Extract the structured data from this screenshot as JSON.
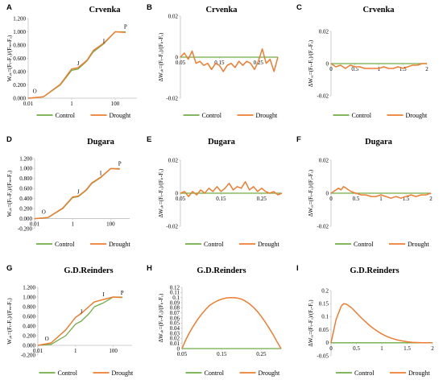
{
  "colors": {
    "control": "#70AD47",
    "drought": "#ED7D31",
    "axis": "#BFBFBF"
  },
  "chart_data": [
    {
      "id": "A",
      "letter": "A",
      "title": "Crvenka",
      "type": "line",
      "kind": "ojip",
      "ylabel": "Wₒₖ=(Fₜ-Fₒ)/(Fₘ-Fₒ)",
      "xscale": "log",
      "xlim": [
        0.01,
        1000
      ],
      "ylim": [
        0,
        1.2
      ],
      "xtick_labels": [
        "0.01",
        "1",
        "100"
      ],
      "ytick_labels": [
        "0.000",
        "0.200",
        "0.400",
        "0.600",
        "0.800",
        "1.000",
        "1.200"
      ],
      "point_labels": [
        {
          "text": "O",
          "x": 0.02,
          "y": 0.08
        },
        {
          "text": "J",
          "x": 2,
          "y": 0.5
        },
        {
          "text": "I",
          "x": 30,
          "y": 0.83
        },
        {
          "text": "P",
          "x": 300,
          "y": 1.05
        }
      ],
      "x": [
        0.01,
        0.05,
        0.3,
        1,
        2,
        5,
        10,
        30,
        100,
        300
      ],
      "series": [
        {
          "name": "Control",
          "values": [
            0,
            0.02,
            0.2,
            0.42,
            0.44,
            0.56,
            0.7,
            0.82,
            1.0,
            1.0
          ]
        },
        {
          "name": "Drought",
          "values": [
            0,
            0.02,
            0.21,
            0.44,
            0.46,
            0.57,
            0.72,
            0.83,
            1.0,
            0.99
          ]
        }
      ],
      "legend": [
        "Control",
        "Drought"
      ]
    },
    {
      "id": "B",
      "letter": "B",
      "title": "Crvenka",
      "type": "line",
      "kind": "diff",
      "ylabel": "ΔWₒₖ=(Fₜ-Fₒ)/(Fₖ-Fₒ)",
      "xlim": [
        0.05,
        0.3
      ],
      "ylim": [
        -0.02,
        0.02
      ],
      "xticks": [
        0.05,
        0.15,
        0.25
      ],
      "xtick_labels": [
        "0.05",
        "0.15",
        "0.25"
      ],
      "yticks": [
        -0.02,
        0,
        0.02
      ],
      "ytick_labels": [
        "-0.02",
        "0",
        "0.02"
      ],
      "x": [
        0.05,
        0.06,
        0.07,
        0.08,
        0.09,
        0.1,
        0.11,
        0.12,
        0.13,
        0.14,
        0.15,
        0.16,
        0.17,
        0.18,
        0.19,
        0.2,
        0.21,
        0.22,
        0.23,
        0.24,
        0.25,
        0.26,
        0.27,
        0.28,
        0.29,
        0.3
      ],
      "series": [
        {
          "name": "Control",
          "values": [
            0,
            0,
            0,
            0,
            0,
            0,
            0,
            0,
            0,
            0,
            0,
            0,
            0,
            0,
            0,
            0,
            0,
            0,
            0,
            0,
            0,
            0,
            0,
            0,
            0,
            0
          ]
        },
        {
          "name": "Drought",
          "values": [
            0,
            0.002,
            -0.001,
            0.003,
            -0.003,
            -0.002,
            -0.004,
            -0.003,
            -0.006,
            -0.003,
            -0.004,
            -0.007,
            -0.004,
            -0.003,
            -0.005,
            -0.002,
            -0.004,
            -0.002,
            -0.003,
            -0.006,
            -0.002,
            0.004,
            -0.003,
            -0.001,
            -0.007,
            0
          ]
        }
      ],
      "legend": [
        "Control",
        "Drought"
      ]
    },
    {
      "id": "C",
      "letter": "C",
      "title": "Crvenka",
      "type": "line",
      "kind": "diff",
      "ylabel": "ΔWₒₑ=(Fₜ-Fₒ)/(Fₑ-Fₒ)",
      "xlim": [
        0,
        2
      ],
      "ylim": [
        -0.02,
        0.02
      ],
      "xticks": [
        0,
        0.5,
        1,
        1.5,
        2
      ],
      "xtick_labels": [
        "0",
        "0.5",
        "1",
        "1.5",
        "2"
      ],
      "yticks": [
        -0.02,
        0,
        0.02
      ],
      "ytick_labels": [
        "-0.02",
        "0",
        "0.02"
      ],
      "x": [
        0,
        0.1,
        0.2,
        0.3,
        0.4,
        0.5,
        0.6,
        0.7,
        0.8,
        0.9,
        1.0,
        1.1,
        1.2,
        1.3,
        1.4,
        1.5,
        1.6,
        1.7,
        1.8,
        1.9,
        2.0
      ],
      "series": [
        {
          "name": "Control",
          "values": [
            0,
            0,
            0,
            0,
            0,
            0,
            0,
            0,
            0,
            0,
            0,
            0,
            0,
            0,
            0,
            0,
            0,
            0,
            0,
            0,
            0
          ]
        },
        {
          "name": "Drought",
          "values": [
            0,
            -0.002,
            -0.001,
            -0.003,
            -0.001,
            -0.002,
            -0.002,
            -0.003,
            -0.003,
            -0.003,
            -0.003,
            -0.002,
            -0.003,
            -0.003,
            -0.002,
            -0.003,
            -0.002,
            -0.001,
            -0.001,
            0,
            0
          ]
        }
      ],
      "legend": [
        "Control",
        "Drought"
      ]
    },
    {
      "id": "D",
      "letter": "D",
      "title": "Dugara",
      "type": "line",
      "kind": "ojip",
      "ylabel": "Wₒₖ=(Fₜ-Fₒ)/(Fₘ-Fₒ)",
      "xscale": "log",
      "xlim": [
        0.01,
        1000
      ],
      "ylim": [
        -0.2,
        1.2
      ],
      "xtick_labels": [
        "0.01",
        "1",
        "100"
      ],
      "ytick_labels": [
        "-0.200",
        "0.000",
        "0.200",
        "0.400",
        "0.600",
        "0.800",
        "1.000",
        "1.200"
      ],
      "point_labels": [
        {
          "text": "O",
          "x": 0.03,
          "y": 0.1
        },
        {
          "text": "J",
          "x": 2,
          "y": 0.5
        },
        {
          "text": "I",
          "x": 30,
          "y": 0.87
        },
        {
          "text": "P",
          "x": 300,
          "y": 1.06
        }
      ],
      "x": [
        0.01,
        0.05,
        0.3,
        1,
        2,
        5,
        10,
        30,
        100,
        300
      ],
      "series": [
        {
          "name": "Control",
          "values": [
            0,
            0.02,
            0.2,
            0.42,
            0.44,
            0.56,
            0.7,
            0.82,
            1.0,
            1.0
          ]
        },
        {
          "name": "Drought",
          "values": [
            0,
            0.02,
            0.21,
            0.43,
            0.45,
            0.57,
            0.71,
            0.83,
            1.0,
            0.99
          ]
        }
      ],
      "legend": [
        "Control",
        "Drought"
      ]
    },
    {
      "id": "E",
      "letter": "E",
      "title": "Dugara",
      "type": "line",
      "kind": "diff",
      "ylabel": "ΔWₒₖ=(Fₜ-Fₒ)/(Fₖ-Fₒ)",
      "xlim": [
        0.05,
        0.3
      ],
      "ylim": [
        -0.02,
        0.02
      ],
      "xticks": [
        0.05,
        0.15,
        0.25
      ],
      "xtick_labels": [
        "0.05",
        "0.15",
        "0.25"
      ],
      "yticks": [
        -0.02,
        0,
        0.02
      ],
      "ytick_labels": [
        "-0.02",
        "0",
        "0.02"
      ],
      "x": [
        0.05,
        0.06,
        0.07,
        0.08,
        0.09,
        0.1,
        0.11,
        0.12,
        0.13,
        0.14,
        0.15,
        0.16,
        0.17,
        0.18,
        0.19,
        0.2,
        0.21,
        0.22,
        0.23,
        0.24,
        0.25,
        0.26,
        0.27,
        0.28,
        0.29,
        0.3
      ],
      "series": [
        {
          "name": "Control",
          "values": [
            0,
            0,
            0,
            0,
            0,
            0,
            0,
            0,
            0,
            0,
            0,
            0,
            0,
            0,
            0,
            0,
            0,
            0,
            0,
            0,
            0,
            0,
            0,
            0,
            0,
            0
          ]
        },
        {
          "name": "Drought",
          "values": [
            0,
            0.001,
            -0.002,
            0.001,
            -0.001,
            0.002,
            0.0,
            0.003,
            0.001,
            0.004,
            0.001,
            0.003,
            0.006,
            0.002,
            0.004,
            0.003,
            0.007,
            0.002,
            0.004,
            0.001,
            0.003,
            0.001,
            0.0,
            0.001,
            -0.001,
            0
          ]
        }
      ],
      "legend": [
        "Control",
        "Drought"
      ]
    },
    {
      "id": "F",
      "letter": "F",
      "title": "Dugara",
      "type": "line",
      "kind": "diff",
      "ylabel": "ΔWₒₑ=(Fₜ-Fₒ)/(Fₑ-Fₒ)",
      "xlim": [
        0,
        2
      ],
      "ylim": [
        -0.02,
        0.02
      ],
      "xticks": [
        0,
        0.5,
        1,
        1.5,
        2
      ],
      "xtick_labels": [
        "0",
        "0.5",
        "1",
        "1.5",
        "2"
      ],
      "yticks": [
        -0.02,
        0,
        0.02
      ],
      "ytick_labels": [
        "-0.02",
        "0",
        "0.02"
      ],
      "x": [
        0,
        0.05,
        0.1,
        0.15,
        0.2,
        0.25,
        0.3,
        0.35,
        0.4,
        0.5,
        0.6,
        0.7,
        0.8,
        0.9,
        1.0,
        1.1,
        1.2,
        1.3,
        1.4,
        1.5,
        1.6,
        1.7,
        1.8,
        1.9,
        2.0
      ],
      "series": [
        {
          "name": "Control",
          "values": [
            0,
            0,
            0,
            0,
            0,
            0,
            0,
            0,
            0,
            0,
            0,
            0,
            0,
            0,
            0,
            0,
            0,
            0,
            0,
            0,
            0,
            0,
            0,
            0,
            0
          ]
        },
        {
          "name": "Drought",
          "values": [
            0,
            0.001,
            0.002,
            0.003,
            0.002,
            0.004,
            0.003,
            0.002,
            0.001,
            0.0,
            -0.001,
            -0.001,
            -0.002,
            -0.002,
            -0.001,
            -0.002,
            -0.003,
            -0.002,
            -0.003,
            -0.002,
            -0.001,
            -0.002,
            -0.001,
            -0.001,
            0
          ]
        }
      ],
      "legend": [
        "Control",
        "Drought"
      ]
    },
    {
      "id": "G",
      "letter": "G",
      "title": "G.D.Reinders",
      "type": "line",
      "kind": "ojip",
      "ylabel": "Wₒₖ=(Fₜ-Fₒ)/(Fₘ-Fₒ)",
      "xscale": "log",
      "xlim": [
        0.01,
        1000
      ],
      "ylim": [
        -0.2,
        1.2
      ],
      "xtick_labels": [
        "0.01",
        "1",
        "100"
      ],
      "ytick_labels": [
        "-0.200",
        "0.000",
        "0.200",
        "0.400",
        "0.600",
        "0.800",
        "1.000",
        "1.200"
      ],
      "point_labels": [
        {
          "text": "O",
          "x": 0.03,
          "y": 0.1
        },
        {
          "text": "J",
          "x": 2,
          "y": 0.66
        },
        {
          "text": "I",
          "x": 30,
          "y": 1.02
        },
        {
          "text": "P",
          "x": 300,
          "y": 1.05
        }
      ],
      "x": [
        0.01,
        0.05,
        0.3,
        1,
        2,
        5,
        10,
        30,
        100,
        300
      ],
      "series": [
        {
          "name": "Control",
          "values": [
            0,
            0.02,
            0.2,
            0.44,
            0.5,
            0.65,
            0.8,
            0.88,
            1.0,
            1.0
          ]
        },
        {
          "name": "Drought",
          "values": [
            0,
            0.05,
            0.32,
            0.58,
            0.66,
            0.8,
            0.9,
            0.95,
            1.0,
            0.99
          ]
        }
      ],
      "legend": [
        "Control",
        "Drought"
      ]
    },
    {
      "id": "H",
      "letter": "H",
      "title": "G.D.Reinders",
      "type": "line",
      "kind": "diff",
      "ylabel": "ΔWₒₖ=(Fₜ-Fₒ)/(Fₖ-Fₒ)",
      "xlim": [
        0.05,
        0.3
      ],
      "ylim": [
        0,
        0.12
      ],
      "xticks": [
        0.05,
        0.15,
        0.25
      ],
      "xtick_labels": [
        "0.05",
        "0.15",
        "0.25"
      ],
      "yticks": [
        0,
        0.01,
        0.02,
        0.03,
        0.04,
        0.05,
        0.06,
        0.07,
        0.08,
        0.09,
        0.1,
        0.11,
        0.12
      ],
      "ytick_labels": [
        "0",
        "0.01",
        "0.02",
        "0.03",
        "0.04",
        "0.05",
        "0.06",
        "0.07",
        "0.08",
        "0.09",
        "0.1",
        "0.11",
        "0.12"
      ],
      "x": [
        0.05,
        0.06,
        0.07,
        0.08,
        0.09,
        0.1,
        0.11,
        0.12,
        0.13,
        0.14,
        0.15,
        0.16,
        0.17,
        0.18,
        0.19,
        0.2,
        0.21,
        0.22,
        0.23,
        0.24,
        0.25,
        0.26,
        0.27,
        0.28,
        0.29,
        0.3
      ],
      "series": [
        {
          "name": "Control",
          "values": [
            0,
            0,
            0,
            0,
            0,
            0,
            0,
            0,
            0,
            0,
            0,
            0,
            0,
            0,
            0,
            0,
            0,
            0,
            0,
            0,
            0,
            0,
            0,
            0,
            0,
            0
          ]
        },
        {
          "name": "Drought",
          "values": [
            0,
            0.018,
            0.033,
            0.046,
            0.058,
            0.068,
            0.077,
            0.085,
            0.09,
            0.094,
            0.097,
            0.099,
            0.1,
            0.1,
            0.099,
            0.097,
            0.093,
            0.088,
            0.081,
            0.073,
            0.063,
            0.052,
            0.04,
            0.027,
            0.013,
            0
          ]
        }
      ],
      "legend": [
        "Control",
        "Drought"
      ]
    },
    {
      "id": "I",
      "letter": "I",
      "title": "G.D.Reinders",
      "type": "line",
      "kind": "diff",
      "ylabel": "ΔWₒₑ=(Fₜ-Fₒ)/(Fₑ-Fₒ)",
      "xlim": [
        0,
        2
      ],
      "ylim": [
        -0.05,
        0.2
      ],
      "xticks": [
        0,
        0.5,
        1,
        1.5,
        2
      ],
      "xtick_labels": [
        "0",
        "0.5",
        "1",
        "1.5",
        "2"
      ],
      "yticks": [
        -0.05,
        0,
        0.05,
        0.1,
        0.15,
        0.2
      ],
      "ytick_labels": [
        "-0.05",
        "0",
        "0.05",
        "0.1",
        "0.15",
        "0.2"
      ],
      "x": [
        0,
        0.1,
        0.2,
        0.25,
        0.3,
        0.4,
        0.5,
        0.6,
        0.7,
        0.8,
        0.9,
        1.0,
        1.1,
        1.2,
        1.3,
        1.4,
        1.5,
        1.6,
        1.7,
        1.8,
        1.9,
        2.0
      ],
      "series": [
        {
          "name": "Control",
          "values": [
            0,
            0,
            0,
            0,
            0,
            0,
            0,
            0,
            0,
            0,
            0,
            0,
            0,
            0,
            0,
            0,
            0,
            0,
            0,
            0,
            0,
            0
          ]
        },
        {
          "name": "Drought",
          "values": [
            0,
            0.09,
            0.14,
            0.15,
            0.148,
            0.135,
            0.115,
            0.095,
            0.077,
            0.06,
            0.046,
            0.034,
            0.024,
            0.017,
            0.011,
            0.007,
            0.004,
            0.002,
            0.001,
            0,
            0,
            0
          ]
        }
      ],
      "legend": [
        "Control",
        "Drought"
      ]
    }
  ]
}
